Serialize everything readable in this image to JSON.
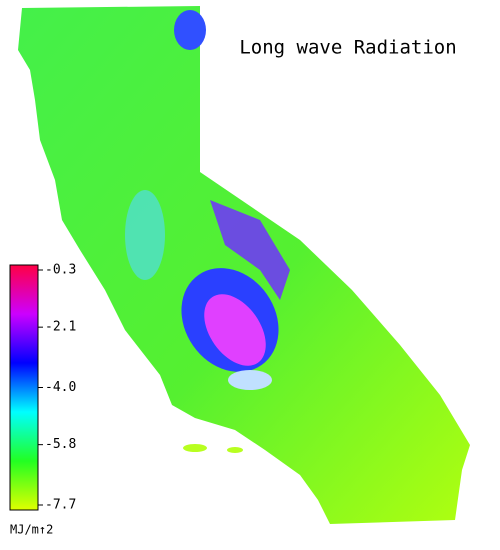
{
  "title": "Long wave Radiation",
  "colorbar": {
    "lim": [
      -7.7,
      -0.3
    ],
    "ticks": [
      -0.3,
      -2.1,
      {
        "value": -4,
        "label": "-4.0"
      },
      -5.8,
      -7.7
    ],
    "colors": [
      "#dfff00",
      "#22ff22",
      "#00ffff",
      "#0000ff",
      "#cc00ff",
      "#ff0044"
    ],
    "unit": "MJ/m↑2"
  }
}
